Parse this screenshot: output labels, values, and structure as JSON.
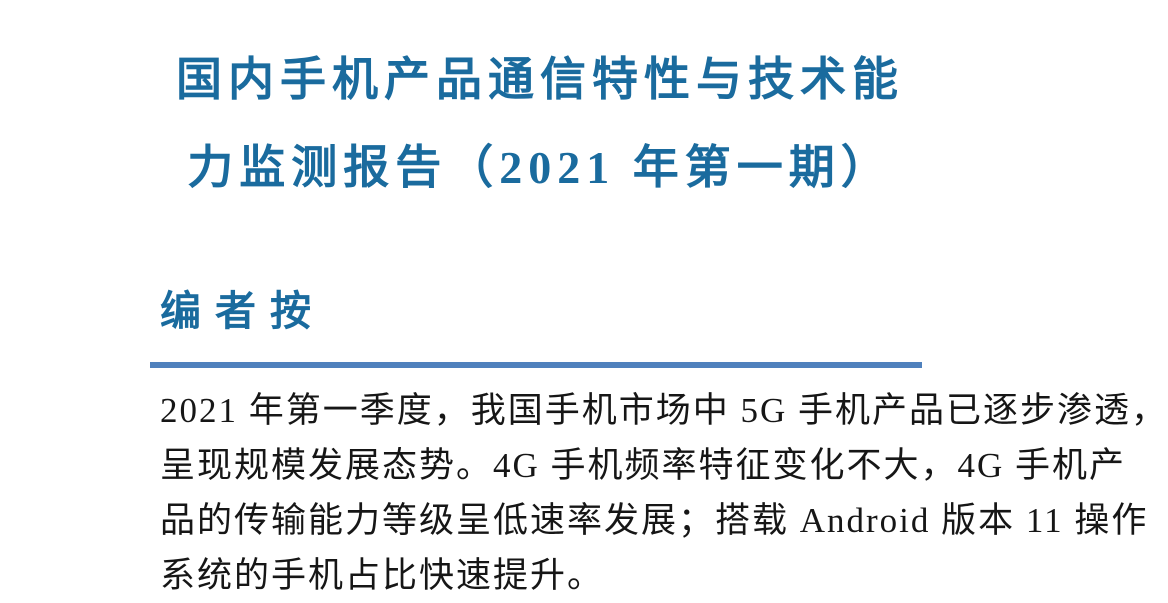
{
  "document": {
    "title": {
      "line1": "国内手机产品通信特性与技术能",
      "line2": "力监测报告（2021 年第一期）"
    },
    "editor_note": {
      "heading": "编者按",
      "paragraph_lines": [
        "2021 年第一季度，我国手机市场中 5G 手机产品已逐步渗透，",
        "呈现规模发展态势。4G 手机频率特征变化不大，4G 手机产",
        "品的传输能力等级呈低速率发展；搭载 Android 版本 11 操作",
        "系统的手机占比快速提升。"
      ]
    }
  },
  "colors": {
    "title_blue": "#1a6b9e",
    "rule_blue": "#4f81bd",
    "body_text": "#161616"
  }
}
